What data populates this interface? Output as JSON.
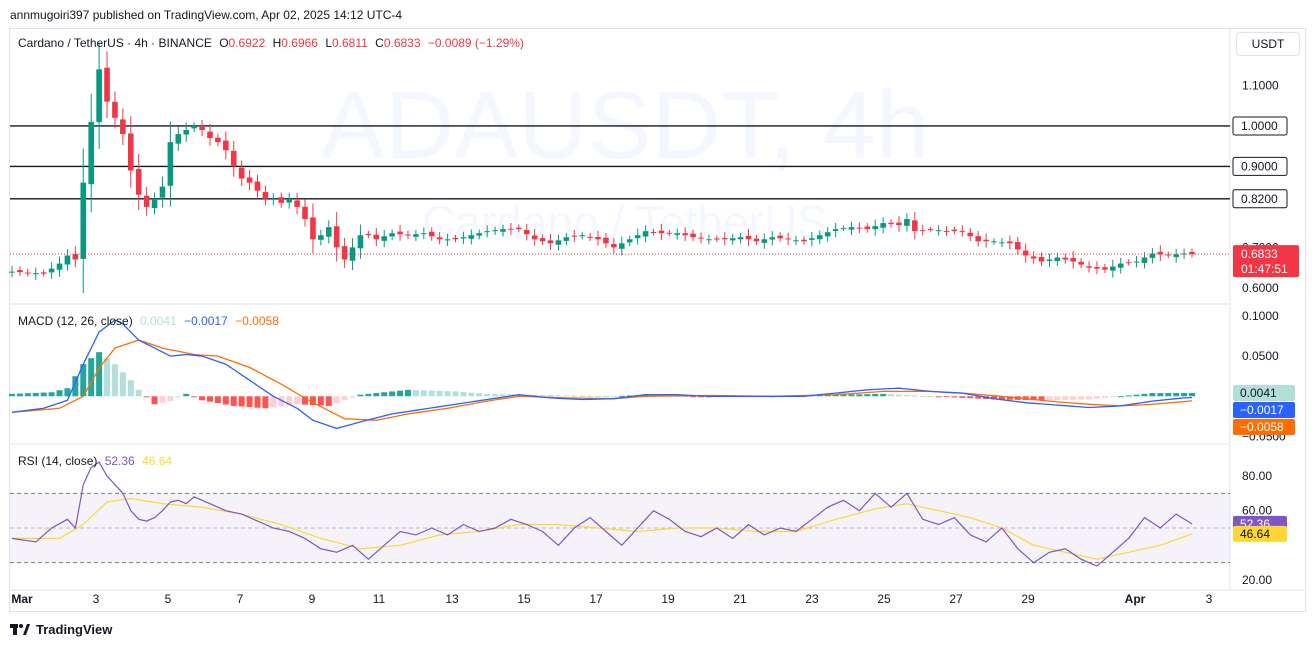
{
  "header": {
    "published_line": "annmugoiri397 published on TradingView.com, Apr 02, 2025 14:12 UTC-4"
  },
  "currency_button": "USDT",
  "legend": {
    "symbol": "Cardano / TetherUS · 4h · BINANCE",
    "open_label": "O",
    "open": "0.6922",
    "high_label": "H",
    "high": "0.6966",
    "low_label": "L",
    "low": "0.6811",
    "close_label": "C",
    "close": "0.6833",
    "change": "−0.0089 (−1.29%)"
  },
  "watermark": {
    "line1": "ADAUSDT, 4h",
    "line2": "Cardano / TetherUS"
  },
  "macd_legend": {
    "name": "MACD (12, 26, close)",
    "hist": "0.0041",
    "macd": "−0.0017",
    "signal": "−0.0058"
  },
  "rsi_legend": {
    "name": "RSI (14, close)",
    "rsi": "52.36",
    "ma": "46.64"
  },
  "footer": {
    "brand": "TradingView"
  },
  "colors": {
    "up": "#089981",
    "down": "#f23645",
    "macd_line": "#2962ff",
    "signal_line": "#ff6d00",
    "hist_up_strong": "#26a69a",
    "hist_up_weak": "#b2dfdb",
    "hist_down_strong": "#ff5252",
    "hist_down_weak": "#ffcdd2",
    "rsi_line": "#7e57c2",
    "rsi_ma": "#fdd835",
    "level_line": "#131722"
  },
  "chart_data": [
    {
      "type": "candlestick",
      "title": "Cardano / TetherUS · 4h · BINANCE",
      "x_ticks": [
        "Mar",
        "3",
        "5",
        "7",
        "9",
        "11",
        "13",
        "15",
        "17",
        "19",
        "21",
        "23",
        "25",
        "27",
        "29",
        "Apr",
        "3"
      ],
      "y_ticks": [
        "1.1000",
        "0.7000",
        "0.6000"
      ],
      "ylim": [
        0.57,
        1.2
      ],
      "horizontal_levels": [
        {
          "value": 1.0,
          "label": "1.0000"
        },
        {
          "value": 0.9,
          "label": "0.9000"
        },
        {
          "value": 0.82,
          "label": "0.8200"
        }
      ],
      "last_price": {
        "value": 0.6833,
        "label": "0.6833",
        "countdown": "01:47:51"
      },
      "close_path": [
        [
          0,
          0.64
        ],
        [
          4,
          0.635
        ],
        [
          6,
          0.66
        ],
        [
          7,
          0.68
        ],
        [
          8,
          0.67
        ],
        [
          9,
          0.86
        ],
        [
          10,
          1.01
        ],
        [
          11,
          1.14
        ],
        [
          12,
          1.06
        ],
        [
          13,
          1.02
        ],
        [
          14,
          0.98
        ],
        [
          15,
          0.89
        ],
        [
          16,
          0.83
        ],
        [
          17,
          0.8
        ],
        [
          18,
          0.82
        ],
        [
          19,
          0.85
        ],
        [
          20,
          0.96
        ],
        [
          21,
          0.98
        ],
        [
          22,
          0.99
        ],
        [
          23,
          1.0
        ],
        [
          24,
          0.99
        ],
        [
          25,
          0.97
        ],
        [
          26,
          0.96
        ],
        [
          27,
          0.94
        ],
        [
          28,
          0.9
        ],
        [
          29,
          0.87
        ],
        [
          30,
          0.86
        ],
        [
          31,
          0.84
        ],
        [
          32,
          0.82
        ],
        [
          33,
          0.82
        ],
        [
          34,
          0.81
        ],
        [
          35,
          0.82
        ],
        [
          36,
          0.8
        ],
        [
          37,
          0.77
        ],
        [
          38,
          0.72
        ],
        [
          39,
          0.73
        ],
        [
          40,
          0.75
        ],
        [
          41,
          0.7
        ],
        [
          42,
          0.67
        ],
        [
          43,
          0.7
        ],
        [
          44,
          0.73
        ],
        [
          45,
          0.73
        ],
        [
          46,
          0.72
        ],
        [
          48,
          0.735
        ],
        [
          50,
          0.73
        ],
        [
          52,
          0.735
        ],
        [
          54,
          0.72
        ],
        [
          56,
          0.72
        ],
        [
          58,
          0.73
        ],
        [
          60,
          0.74
        ],
        [
          62,
          0.745
        ],
        [
          64,
          0.745
        ],
        [
          66,
          0.72
        ],
        [
          68,
          0.71
        ],
        [
          70,
          0.725
        ],
        [
          72,
          0.73
        ],
        [
          74,
          0.72
        ],
        [
          76,
          0.7
        ],
        [
          78,
          0.72
        ],
        [
          80,
          0.74
        ],
        [
          82,
          0.735
        ],
        [
          84,
          0.735
        ],
        [
          86,
          0.725
        ],
        [
          88,
          0.72
        ],
        [
          90,
          0.72
        ],
        [
          92,
          0.725
        ],
        [
          94,
          0.715
        ],
        [
          96,
          0.725
        ],
        [
          98,
          0.72
        ],
        [
          100,
          0.715
        ],
        [
          102,
          0.73
        ],
        [
          104,
          0.745
        ],
        [
          106,
          0.75
        ],
        [
          108,
          0.745
        ],
        [
          110,
          0.76
        ],
        [
          112,
          0.755
        ],
        [
          113,
          0.77
        ],
        [
          114,
          0.74
        ],
        [
          116,
          0.745
        ],
        [
          118,
          0.74
        ],
        [
          120,
          0.74
        ],
        [
          122,
          0.715
        ],
        [
          124,
          0.715
        ],
        [
          126,
          0.71
        ],
        [
          128,
          0.68
        ],
        [
          130,
          0.665
        ],
        [
          132,
          0.675
        ],
        [
          134,
          0.665
        ],
        [
          136,
          0.65
        ],
        [
          138,
          0.645
        ],
        [
          140,
          0.66
        ],
        [
          142,
          0.665
        ],
        [
          144,
          0.685
        ],
        [
          146,
          0.68
        ],
        [
          148,
          0.685
        ],
        [
          149,
          0.6833
        ]
      ]
    },
    {
      "type": "bar+line",
      "title": "MACD (12, 26, close)",
      "y_ticks": [
        "0.1000",
        "0.0500",
        "−0.0500"
      ],
      "ylim": [
        -0.057,
        0.11
      ],
      "current": {
        "histogram": "0.0041",
        "macd": "−0.0017",
        "signal": "−0.0058"
      },
      "macd_path": [
        [
          0,
          -0.02
        ],
        [
          4,
          -0.015
        ],
        [
          7,
          -0.005
        ],
        [
          9,
          0.04
        ],
        [
          11,
          0.08
        ],
        [
          13,
          0.095
        ],
        [
          14,
          0.09
        ],
        [
          16,
          0.07
        ],
        [
          18,
          0.06
        ],
        [
          20,
          0.05
        ],
        [
          22,
          0.052
        ],
        [
          24,
          0.05
        ],
        [
          27,
          0.04
        ],
        [
          30,
          0.02
        ],
        [
          33,
          0.0
        ],
        [
          36,
          -0.015
        ],
        [
          38,
          -0.03
        ],
        [
          41,
          -0.04
        ],
        [
          44,
          -0.032
        ],
        [
          48,
          -0.022
        ],
        [
          52,
          -0.016
        ],
        [
          56,
          -0.01
        ],
        [
          60,
          -0.004
        ],
        [
          64,
          0.002
        ],
        [
          68,
          -0.002
        ],
        [
          72,
          -0.004
        ],
        [
          76,
          -0.003
        ],
        [
          80,
          0.002
        ],
        [
          84,
          0.002
        ],
        [
          88,
          0.0
        ],
        [
          92,
          0.0
        ],
        [
          96,
          0.0
        ],
        [
          100,
          0.0
        ],
        [
          104,
          0.004
        ],
        [
          108,
          0.008
        ],
        [
          112,
          0.01
        ],
        [
          116,
          0.006
        ],
        [
          120,
          0.004
        ],
        [
          124,
          -0.003
        ],
        [
          128,
          -0.008
        ],
        [
          132,
          -0.011
        ],
        [
          136,
          -0.014
        ],
        [
          140,
          -0.012
        ],
        [
          144,
          -0.006
        ],
        [
          148,
          -0.002
        ],
        [
          149,
          -0.0017
        ]
      ],
      "signal_path": [
        [
          0,
          -0.02
        ],
        [
          6,
          -0.015
        ],
        [
          9,
          0.0
        ],
        [
          11,
          0.035
        ],
        [
          13,
          0.06
        ],
        [
          16,
          0.07
        ],
        [
          19,
          0.06
        ],
        [
          23,
          0.052
        ],
        [
          26,
          0.05
        ],
        [
          30,
          0.036
        ],
        [
          34,
          0.015
        ],
        [
          38,
          -0.008
        ],
        [
          42,
          -0.028
        ],
        [
          46,
          -0.03
        ],
        [
          50,
          -0.022
        ],
        [
          55,
          -0.015
        ],
        [
          60,
          -0.006
        ],
        [
          64,
          0.0
        ],
        [
          70,
          -0.002
        ],
        [
          76,
          -0.003
        ],
        [
          80,
          0.0
        ],
        [
          88,
          0.001
        ],
        [
          96,
          0.0
        ],
        [
          104,
          0.002
        ],
        [
          110,
          0.006
        ],
        [
          116,
          0.006
        ],
        [
          120,
          0.004
        ],
        [
          126,
          -0.001
        ],
        [
          132,
          -0.007
        ],
        [
          136,
          -0.01
        ],
        [
          140,
          -0.012
        ],
        [
          144,
          -0.01
        ],
        [
          149,
          -0.0058
        ]
      ],
      "histogram_path": [
        [
          0,
          0.003
        ],
        [
          5,
          0.005
        ],
        [
          7,
          0.01
        ],
        [
          9,
          0.04
        ],
        [
          11,
          0.055
        ],
        [
          13,
          0.04
        ],
        [
          15,
          0.02
        ],
        [
          16,
          0.008
        ],
        [
          18,
          -0.01
        ],
        [
          20,
          -0.006
        ],
        [
          22,
          0.003
        ],
        [
          24,
          -0.005
        ],
        [
          28,
          -0.012
        ],
        [
          32,
          -0.015
        ],
        [
          36,
          -0.01
        ],
        [
          40,
          -0.012
        ],
        [
          44,
          0.002
        ],
        [
          50,
          0.008
        ],
        [
          56,
          0.006
        ],
        [
          60,
          0.003
        ],
        [
          64,
          0.002
        ],
        [
          70,
          0.001
        ],
        [
          76,
          0.0
        ],
        [
          80,
          0.002
        ],
        [
          88,
          -0.001
        ],
        [
          96,
          0.0
        ],
        [
          104,
          0.002
        ],
        [
          110,
          0.003
        ],
        [
          116,
          0.0
        ],
        [
          120,
          -0.002
        ],
        [
          124,
          -0.004
        ],
        [
          130,
          -0.005
        ],
        [
          136,
          -0.004
        ],
        [
          140,
          0.0
        ],
        [
          144,
          0.004
        ],
        [
          149,
          0.0041
        ]
      ]
    },
    {
      "type": "line",
      "title": "RSI (14, close)",
      "y_ticks": [
        "80.00",
        "60.00",
        "20.00"
      ],
      "ylim": [
        20,
        80
      ],
      "band": [
        30,
        70
      ],
      "current": {
        "rsi": "52.36",
        "ma": "46.64"
      },
      "rsi_path": [
        [
          0,
          44
        ],
        [
          3,
          42
        ],
        [
          5,
          50
        ],
        [
          7,
          55
        ],
        [
          8,
          50
        ],
        [
          9,
          75
        ],
        [
          10,
          85
        ],
        [
          11,
          88
        ],
        [
          12,
          80
        ],
        [
          13,
          75
        ],
        [
          14,
          70
        ],
        [
          15,
          60
        ],
        [
          16,
          55
        ],
        [
          17,
          54
        ],
        [
          18,
          56
        ],
        [
          19,
          60
        ],
        [
          20,
          65
        ],
        [
          21,
          66
        ],
        [
          22,
          64
        ],
        [
          23,
          68
        ],
        [
          25,
          64
        ],
        [
          27,
          60
        ],
        [
          29,
          58
        ],
        [
          31,
          54
        ],
        [
          33,
          50
        ],
        [
          35,
          48
        ],
        [
          37,
          44
        ],
        [
          39,
          38
        ],
        [
          41,
          36
        ],
        [
          43,
          40
        ],
        [
          45,
          32
        ],
        [
          47,
          40
        ],
        [
          49,
          48
        ],
        [
          51,
          46
        ],
        [
          53,
          50
        ],
        [
          55,
          46
        ],
        [
          57,
          52
        ],
        [
          59,
          48
        ],
        [
          61,
          50
        ],
        [
          63,
          55
        ],
        [
          65,
          52
        ],
        [
          67,
          48
        ],
        [
          69,
          40
        ],
        [
          71,
          50
        ],
        [
          73,
          56
        ],
        [
          75,
          48
        ],
        [
          77,
          40
        ],
        [
          79,
          50
        ],
        [
          81,
          60
        ],
        [
          83,
          55
        ],
        [
          85,
          48
        ],
        [
          87,
          45
        ],
        [
          89,
          50
        ],
        [
          91,
          44
        ],
        [
          93,
          52
        ],
        [
          95,
          46
        ],
        [
          97,
          50
        ],
        [
          99,
          48
        ],
        [
          101,
          55
        ],
        [
          103,
          62
        ],
        [
          105,
          66
        ],
        [
          107,
          60
        ],
        [
          109,
          70
        ],
        [
          111,
          62
        ],
        [
          113,
          70
        ],
        [
          115,
          55
        ],
        [
          117,
          52
        ],
        [
          119,
          56
        ],
        [
          121,
          46
        ],
        [
          123,
          42
        ],
        [
          125,
          50
        ],
        [
          127,
          38
        ],
        [
          129,
          30
        ],
        [
          131,
          36
        ],
        [
          133,
          38
        ],
        [
          135,
          32
        ],
        [
          137,
          28
        ],
        [
          139,
          36
        ],
        [
          141,
          44
        ],
        [
          143,
          56
        ],
        [
          145,
          50
        ],
        [
          147,
          58
        ],
        [
          149,
          52.36
        ]
      ],
      "ma_path": [
        [
          0,
          44
        ],
        [
          6,
          44
        ],
        [
          9,
          52
        ],
        [
          12,
          65
        ],
        [
          15,
          67
        ],
        [
          19,
          64
        ],
        [
          24,
          62
        ],
        [
          29,
          58
        ],
        [
          34,
          52
        ],
        [
          39,
          44
        ],
        [
          44,
          38
        ],
        [
          49,
          40
        ],
        [
          54,
          46
        ],
        [
          59,
          48
        ],
        [
          64,
          52
        ],
        [
          69,
          52
        ],
        [
          74,
          50
        ],
        [
          79,
          48
        ],
        [
          84,
          50
        ],
        [
          89,
          50
        ],
        [
          94,
          48
        ],
        [
          99,
          48
        ],
        [
          104,
          55
        ],
        [
          109,
          61
        ],
        [
          113,
          64
        ],
        [
          117,
          60
        ],
        [
          121,
          56
        ],
        [
          125,
          50
        ],
        [
          129,
          40
        ],
        [
          133,
          36
        ],
        [
          137,
          32
        ],
        [
          141,
          36
        ],
        [
          145,
          40
        ],
        [
          149,
          46.64
        ]
      ]
    }
  ]
}
